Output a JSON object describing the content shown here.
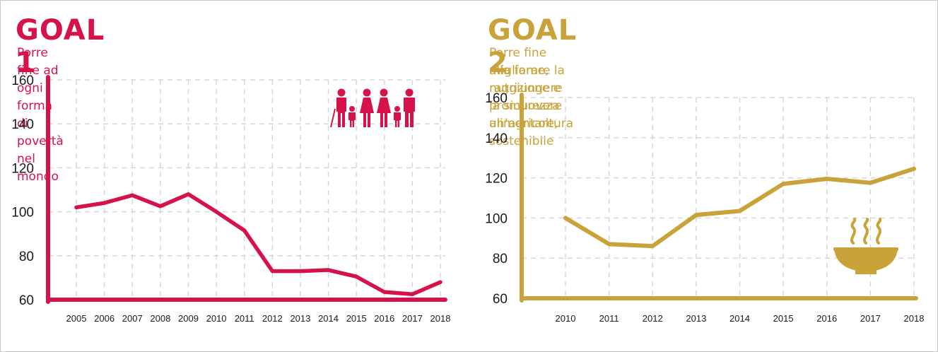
{
  "colors": {
    "goal1": "#d6124a",
    "goal2": "#c9a23a",
    "grid": "#d7d7d7",
    "text": "#1a1a1a"
  },
  "panels": [
    {
      "title": "GOAL 1",
      "subtitle_lines": [
        "Porre fine ad ogni forma di povertà nel mondo"
      ],
      "icon": "family-icon"
    },
    {
      "title": "GOAL 2",
      "subtitle_lines": [
        "Porre fine alla fame, raggiungere la sicurezza alimentare,",
        "migliorare la nutrizione e promuovere un’agricoltura sostenibile"
      ],
      "icon": "food-bowl-icon"
    }
  ],
  "chart_data": [
    {
      "type": "line",
      "title": "GOAL 1",
      "categories": [
        "2005",
        "2006",
        "2007",
        "2008",
        "2009",
        "2010",
        "2011",
        "2012",
        "2013",
        "2014",
        "2015",
        "2016",
        "2017",
        "2018"
      ],
      "series": [
        {
          "values": [
            102,
            104,
            107.5,
            102.5,
            108,
            100,
            91.5,
            73,
            73,
            73.5,
            70.5,
            63.5,
            62.5,
            68
          ]
        }
      ],
      "ylim": [
        60,
        160
      ],
      "yticks": [
        60,
        80,
        100,
        120,
        140,
        160
      ],
      "grid": true
    },
    {
      "type": "line",
      "title": "GOAL 2",
      "categories": [
        "2010",
        "2011",
        "2012",
        "2013",
        "2014",
        "2015",
        "2016",
        "2017",
        "2018"
      ],
      "series": [
        {
          "values": [
            100,
            87,
            86,
            101.5,
            103.5,
            117,
            119.5,
            117.5,
            124.5
          ]
        }
      ],
      "ylim": [
        60,
        160
      ],
      "yticks": [
        60,
        80,
        100,
        120,
        140,
        160
      ],
      "grid": true
    }
  ]
}
